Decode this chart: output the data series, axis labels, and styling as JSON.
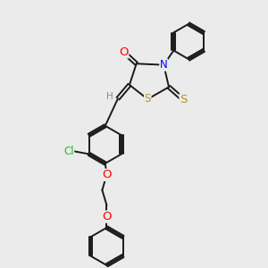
{
  "bg_color": "#ebebeb",
  "bond_color": "#1a1a1a",
  "bond_width": 1.4,
  "atom_colors": {
    "O": "#ff0000",
    "N": "#0000ff",
    "S_thione": "#b8960c",
    "S_ring": "#b8960c",
    "Cl": "#22bb22",
    "H": "#888888"
  },
  "font_size": 8.5
}
